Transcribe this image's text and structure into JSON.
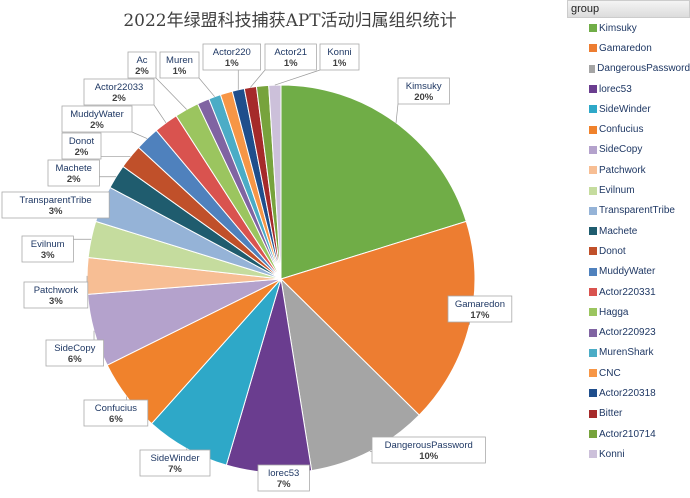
{
  "chart_data": {
    "type": "pie",
    "title": "2022年绿盟科技捕获APT活动归属组织统计",
    "legend_title": "group",
    "legend_placement": "right",
    "slices": [
      {
        "name": "Kimsuky",
        "label": "Kimsuky",
        "value": 20,
        "color": "#70ad47"
      },
      {
        "name": "Gamaredon",
        "label": "Gamaredon",
        "value": 17,
        "color": "#ed7d31"
      },
      {
        "name": "DangerousPassword",
        "label": "DangerousPassword",
        "value": 10,
        "color": "#a5a5a5"
      },
      {
        "name": "lorec53",
        "label": "lorec53",
        "value": 7,
        "color": "#6a3d8f"
      },
      {
        "name": "SideWinder",
        "label": "SideWinder",
        "value": 7,
        "color": "#2ea8c8"
      },
      {
        "name": "Confucius",
        "label": "Confucius",
        "value": 6,
        "color": "#f0822c"
      },
      {
        "name": "SideCopy",
        "label": "SideCopy",
        "value": 6,
        "color": "#b4a2cc"
      },
      {
        "name": "Patchwork",
        "label": "Patchwork",
        "value": 3,
        "color": "#f7be94"
      },
      {
        "name": "Evilnum",
        "label": "Evilnum",
        "value": 3,
        "color": "#c5dc9e"
      },
      {
        "name": "TransparentTribe",
        "label": "TransparentTribe",
        "value": 3,
        "color": "#95b3d7"
      },
      {
        "name": "Machete",
        "label": "Machete",
        "value": 2,
        "color": "#1f5c6e"
      },
      {
        "name": "Donot",
        "label": "Donot",
        "value": 2,
        "color": "#c0502a"
      },
      {
        "name": "MuddyWater",
        "label": "MuddyWater",
        "value": 2,
        "color": "#4f81bd"
      },
      {
        "name": "Actor220331",
        "label": "Actor22033",
        "value": 2,
        "color": "#d9534f"
      },
      {
        "name": "Hagga",
        "label": "Ac",
        "value": 2,
        "color": "#9bc55f"
      },
      {
        "name": "Actor220923",
        "label": "",
        "value": 1,
        "color": "#8064a2"
      },
      {
        "name": "MurenShark",
        "label": "Muren",
        "value": 1,
        "color": "#4bacc6"
      },
      {
        "name": "CNC",
        "label": "",
        "value": 1,
        "color": "#f79646"
      },
      {
        "name": "Actor220318",
        "label": "Actor220",
        "value": 1,
        "color": "#1f4e8c"
      },
      {
        "name": "Bitter",
        "label": "Actor21",
        "value": 1,
        "color": "#a52a2a"
      },
      {
        "name": "Actor210714",
        "label": "",
        "value": 1,
        "color": "#77a33c"
      },
      {
        "name": "Konni",
        "label": "Konni",
        "value": 1,
        "color": "#ccc0da"
      }
    ]
  }
}
